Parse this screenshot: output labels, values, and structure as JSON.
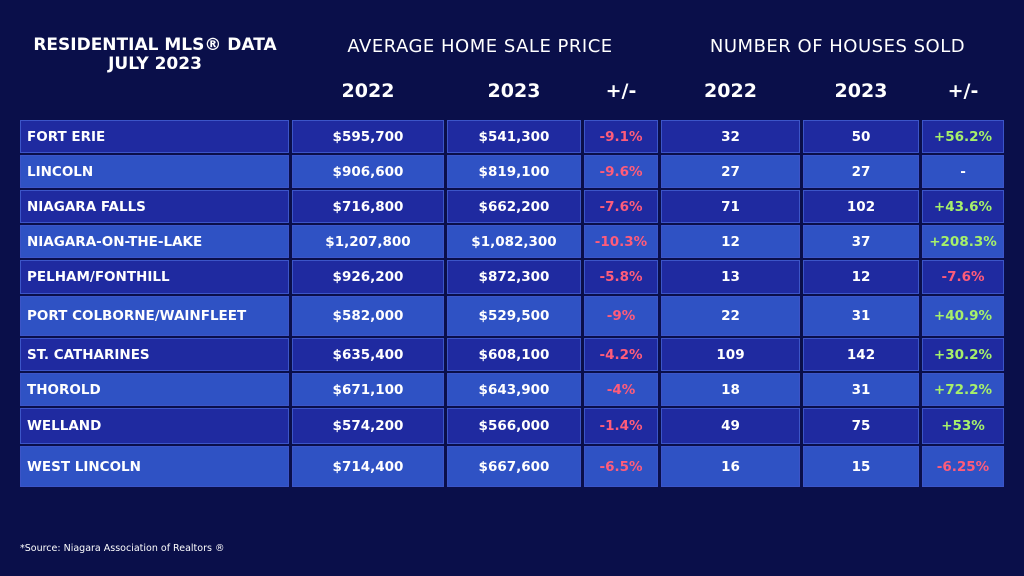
{
  "title_line1": "RESIDENTIAL MLS® DATA",
  "title_line2": "JULY 2023",
  "price_group_title": "AVERAGE HOME SALE PRICE",
  "sold_group_title": "NUMBER OF HOUSES SOLD",
  "column_headers": [
    "2022",
    "2023",
    "+/-",
    "2022",
    "2023",
    "+/-"
  ],
  "source": "*Source: Niagara Association of Realtors ®",
  "colors": {
    "background": "#0a0f4a",
    "row_dark": "#1f2aa0",
    "row_light": "#2f52c4",
    "negative": "#ff5c7a",
    "positive": "#a6f06a"
  },
  "chart_data": {
    "type": "table",
    "title": "RESIDENTIAL MLS® DATA JULY 2023",
    "columns": [
      "AVERAGE HOME SALE PRICE 2022",
      "AVERAGE HOME SALE PRICE 2023",
      "+/-",
      "NUMBER OF HOUSES SOLD 2022",
      "NUMBER OF HOUSES SOLD 2023",
      "+/-"
    ],
    "rows": [
      {
        "name": "FORT ERIE",
        "price_2022": "$595,700",
        "price_2023": "$541,300",
        "price_change": "-9.1%",
        "sold_2022": "32",
        "sold_2023": "50",
        "sold_change": "+56.2%"
      },
      {
        "name": "LINCOLN",
        "price_2022": "$906,600",
        "price_2023": "$819,100",
        "price_change": "-9.6%",
        "sold_2022": "27",
        "sold_2023": "27",
        "sold_change": "-"
      },
      {
        "name": "NIAGARA FALLS",
        "price_2022": "$716,800",
        "price_2023": "$662,200",
        "price_change": "-7.6%",
        "sold_2022": "71",
        "sold_2023": "102",
        "sold_change": "+43.6%"
      },
      {
        "name": "NIAGARA-ON-THE-LAKE",
        "price_2022": "$1,207,800",
        "price_2023": "$1,082,300",
        "price_change": "-10.3%",
        "sold_2022": "12",
        "sold_2023": "37",
        "sold_change": "+208.3%"
      },
      {
        "name": "PELHAM/FONTHILL",
        "price_2022": "$926,200",
        "price_2023": "$872,300",
        "price_change": "-5.8%",
        "sold_2022": "13",
        "sold_2023": "12",
        "sold_change": "-7.6%"
      },
      {
        "name": "PORT COLBORNE/WAINFLEET",
        "price_2022": "$582,000",
        "price_2023": "$529,500",
        "price_change": "-9%",
        "sold_2022": "22",
        "sold_2023": "31",
        "sold_change": "+40.9%"
      },
      {
        "name": "ST. CATHARINES",
        "price_2022": "$635,400",
        "price_2023": "$608,100",
        "price_change": "-4.2%",
        "sold_2022": "109",
        "sold_2023": "142",
        "sold_change": "+30.2%"
      },
      {
        "name": "THOROLD",
        "price_2022": "$671,100",
        "price_2023": "$643,900",
        "price_change": "-4%",
        "sold_2022": "18",
        "sold_2023": "31",
        "sold_change": "+72.2%"
      },
      {
        "name": "WELLAND",
        "price_2022": "$574,200",
        "price_2023": "$566,000",
        "price_change": "-1.4%",
        "sold_2022": "49",
        "sold_2023": "75",
        "sold_change": "+53%"
      },
      {
        "name": "WEST LINCOLN",
        "price_2022": "$714,400",
        "price_2023": "$667,600",
        "price_change": "-6.5%",
        "sold_2022": "16",
        "sold_2023": "15",
        "sold_change": "-6.25%"
      }
    ]
  }
}
